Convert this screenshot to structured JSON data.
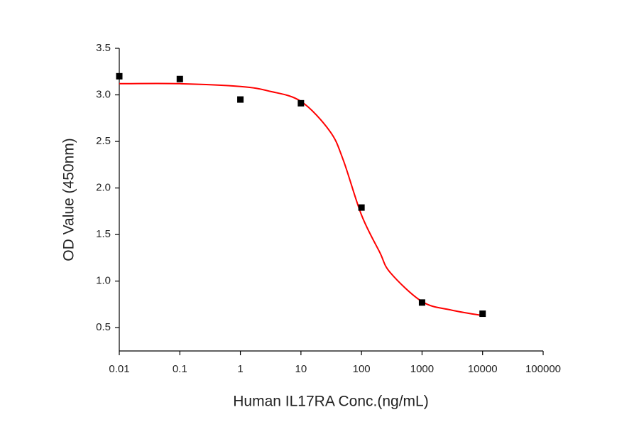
{
  "chart_data": {
    "type": "scatter",
    "x_label": "Human IL17RA Conc.(ng/mL)",
    "y_label": "OD Value (450nm)",
    "xscale": "log",
    "xlim": [
      0.01,
      100000
    ],
    "xticks": [
      0.01,
      0.1,
      1,
      10,
      100,
      1000,
      10000,
      100000
    ],
    "ylim": [
      0.25,
      3.5
    ],
    "yticks": [
      0.5,
      {
        "value": 1,
        "label": "1.0"
      },
      1.5,
      {
        "value": 2,
        "label": "2.0"
      },
      2.5,
      {
        "value": 3,
        "label": "3.0"
      },
      3.5
    ],
    "series": [
      {
        "type": "scatter",
        "color": "#000000",
        "x": [
          0.01,
          0.1,
          1,
          10,
          100,
          1000,
          10000
        ],
        "values": [
          3.2,
          3.17,
          2.95,
          2.91,
          1.79,
          0.77,
          0.65
        ]
      },
      {
        "type": "line",
        "color": "#ff0000",
        "x": [
          0.01,
          0.1,
          1,
          3,
          10,
          30,
          50,
          100,
          200,
          300,
          1000,
          3000,
          10000
        ],
        "values": [
          3.12,
          3.12,
          3.09,
          3.04,
          2.93,
          2.61,
          2.3,
          1.71,
          1.31,
          1.09,
          0.78,
          0.69,
          0.63
        ]
      }
    ]
  }
}
